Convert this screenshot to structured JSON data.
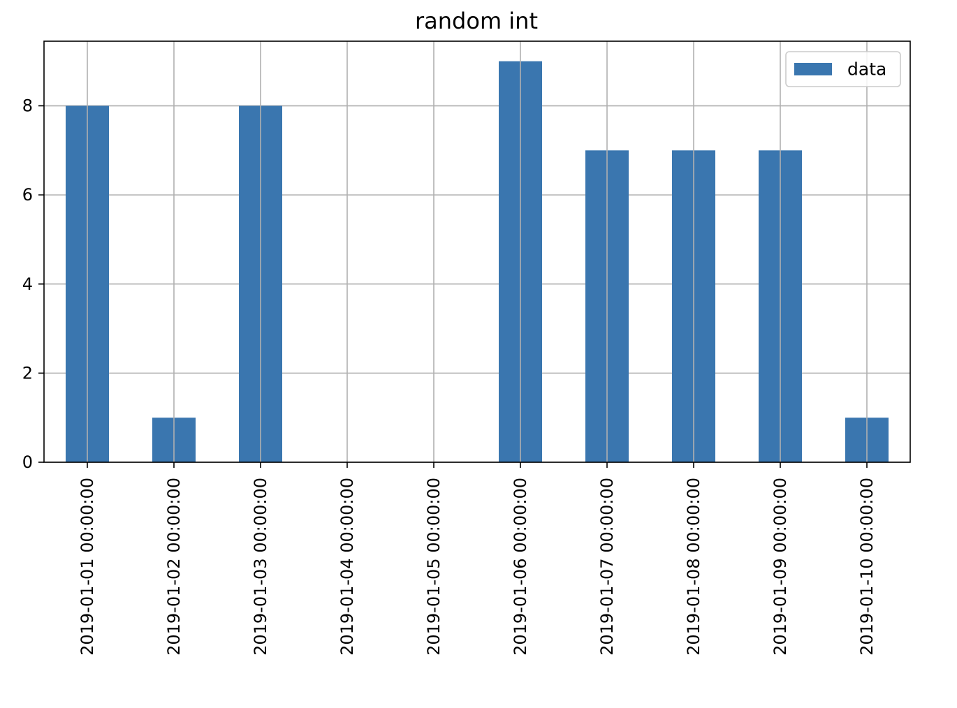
{
  "chart_data": {
    "type": "bar",
    "title": "random int",
    "xlabel": "",
    "ylabel": "",
    "categories": [
      "2019-01-01 00:00:00",
      "2019-01-02 00:00:00",
      "2019-01-03 00:00:00",
      "2019-01-04 00:00:00",
      "2019-01-05 00:00:00",
      "2019-01-06 00:00:00",
      "2019-01-07 00:00:00",
      "2019-01-08 00:00:00",
      "2019-01-09 00:00:00",
      "2019-01-10 00:00:00"
    ],
    "series": [
      {
        "name": "data",
        "color": "#3a76af",
        "values": [
          8,
          1,
          8,
          0,
          0,
          9,
          7,
          7,
          7,
          1
        ]
      }
    ],
    "ylim": [
      0,
      9.45
    ],
    "yticks": [
      0,
      2,
      4,
      6,
      8
    ],
    "grid": true,
    "legend_position": "top-right"
  }
}
